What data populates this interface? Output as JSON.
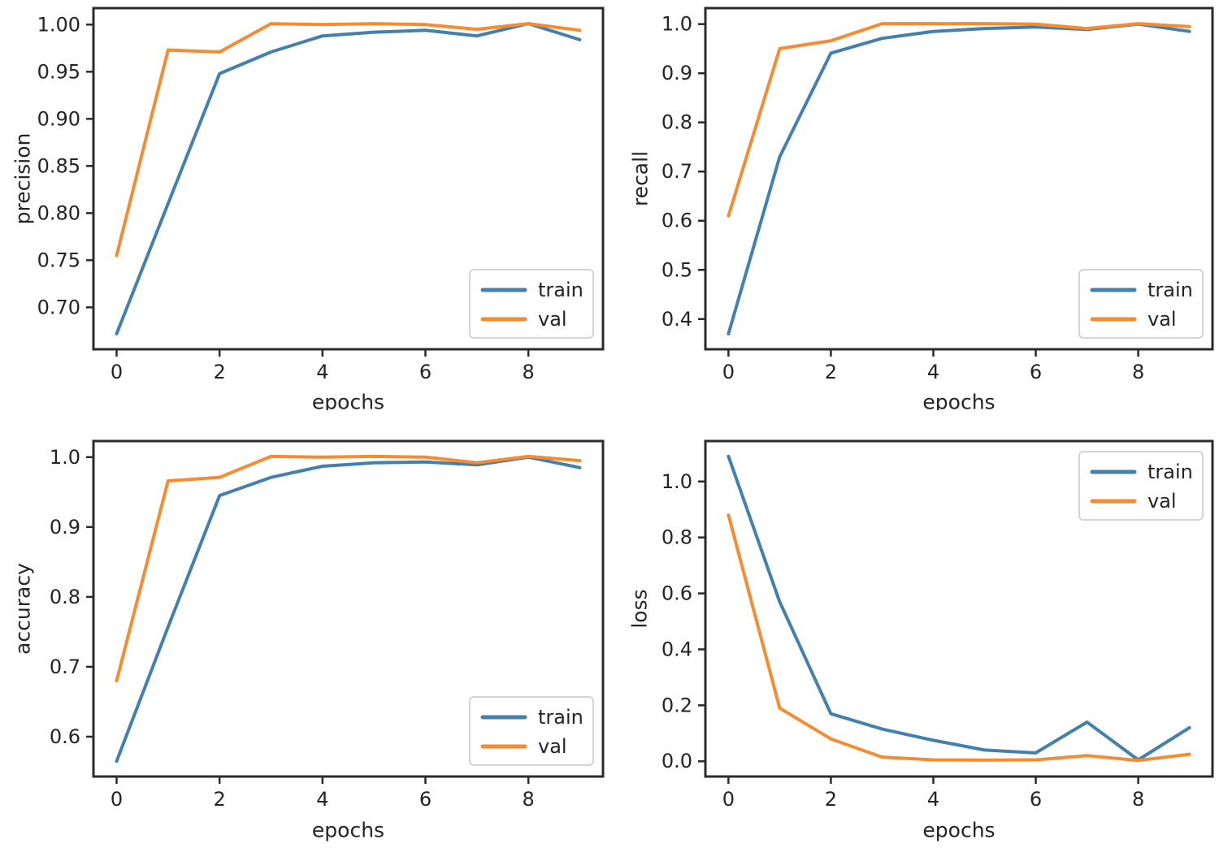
{
  "figure": {
    "background": "#ffffff",
    "colors": {
      "train": "#4380ae",
      "val": "#f68b32",
      "spine": "#2b2b2b",
      "text": "#242424",
      "legend_border": "#d4d4d4",
      "legend_fill": "#ffffff"
    }
  },
  "chart_data": [
    {
      "type": "line",
      "title": "",
      "ylabel": "precision",
      "xlabel": "epochs",
      "x": [
        0,
        1,
        2,
        3,
        4,
        5,
        6,
        7,
        8,
        9
      ],
      "series": [
        {
          "name": "train",
          "color": "#4380ae",
          "values": [
            0.672,
            0.81,
            0.948,
            0.971,
            0.988,
            0.992,
            0.994,
            0.988,
            1.001,
            0.984
          ]
        },
        {
          "name": "val",
          "color": "#f68b32",
          "values": [
            0.755,
            0.973,
            0.971,
            1.001,
            1.0,
            1.001,
            1.0,
            0.995,
            1.001,
            0.994
          ]
        }
      ],
      "xlim": [
        -0.45,
        9.45
      ],
      "ylim": [
        0.6555,
        1.0175
      ],
      "xticks": {
        "values": [
          0,
          2,
          4,
          6,
          8
        ],
        "labels": [
          "0",
          "2",
          "4",
          "6",
          "8"
        ]
      },
      "yticks": {
        "values": [
          0.7,
          0.75,
          0.8,
          0.85,
          0.9,
          0.95,
          1.0
        ],
        "labels": [
          "0.70",
          "0.75",
          "0.80",
          "0.85",
          "0.90",
          "0.95",
          "1.00"
        ]
      },
      "legend": {
        "position": "lower-right"
      },
      "grid": false
    },
    {
      "type": "line",
      "title": "",
      "ylabel": "recall",
      "xlabel": "epochs",
      "x": [
        0,
        1,
        2,
        3,
        4,
        5,
        6,
        7,
        8,
        9
      ],
      "series": [
        {
          "name": "train",
          "color": "#4380ae",
          "values": [
            0.37,
            0.73,
            0.941,
            0.971,
            0.985,
            0.991,
            0.994,
            0.989,
            1.0,
            0.985
          ]
        },
        {
          "name": "val",
          "color": "#f68b32",
          "values": [
            0.61,
            0.95,
            0.966,
            1.001,
            1.001,
            1.001,
            1.0,
            0.991,
            1.001,
            0.995
          ]
        }
      ],
      "xlim": [
        -0.45,
        9.45
      ],
      "ylim": [
        0.3385,
        1.0325
      ],
      "xticks": {
        "values": [
          0,
          2,
          4,
          6,
          8
        ],
        "labels": [
          "0",
          "2",
          "4",
          "6",
          "8"
        ]
      },
      "yticks": {
        "values": [
          0.4,
          0.5,
          0.6,
          0.7,
          0.8,
          0.9,
          1.0
        ],
        "labels": [
          "0.4",
          "0.5",
          "0.6",
          "0.7",
          "0.8",
          "0.9",
          "1.0"
        ]
      },
      "legend": {
        "position": "lower-right"
      },
      "grid": false
    },
    {
      "type": "line",
      "title": "",
      "ylabel": "accuracy",
      "xlabel": "epochs",
      "x": [
        0,
        1,
        2,
        3,
        4,
        5,
        6,
        7,
        8,
        9
      ],
      "series": [
        {
          "name": "train",
          "color": "#4380ae",
          "values": [
            0.565,
            0.757,
            0.945,
            0.971,
            0.987,
            0.992,
            0.993,
            0.989,
            1.0,
            0.985
          ]
        },
        {
          "name": "val",
          "color": "#f68b32",
          "values": [
            0.68,
            0.966,
            0.971,
            1.001,
            1.0,
            1.001,
            1.0,
            0.992,
            1.001,
            0.995
          ]
        }
      ],
      "xlim": [
        -0.45,
        9.45
      ],
      "ylim": [
        0.543,
        1.023
      ],
      "xticks": {
        "values": [
          0,
          2,
          4,
          6,
          8
        ],
        "labels": [
          "0",
          "2",
          "4",
          "6",
          "8"
        ]
      },
      "yticks": {
        "values": [
          0.6,
          0.7,
          0.8,
          0.9,
          1.0
        ],
        "labels": [
          "0.6",
          "0.7",
          "0.8",
          "0.9",
          "1.0"
        ]
      },
      "legend": {
        "position": "lower-right"
      },
      "grid": false
    },
    {
      "type": "line",
      "title": "",
      "ylabel": "loss",
      "xlabel": "epochs",
      "x": [
        0,
        1,
        2,
        3,
        4,
        5,
        6,
        7,
        8,
        9
      ],
      "series": [
        {
          "name": "train",
          "color": "#4380ae",
          "values": [
            1.09,
            0.57,
            0.17,
            0.115,
            0.075,
            0.04,
            0.03,
            0.14,
            0.005,
            0.12
          ]
        },
        {
          "name": "val",
          "color": "#f68b32",
          "values": [
            0.88,
            0.19,
            0.08,
            0.015,
            0.005,
            0.004,
            0.005,
            0.02,
            0.003,
            0.025
          ]
        }
      ],
      "xlim": [
        -0.45,
        9.45
      ],
      "ylim": [
        -0.0545,
        1.1445
      ],
      "xticks": {
        "values": [
          0,
          2,
          4,
          6,
          8
        ],
        "labels": [
          "0",
          "2",
          "4",
          "6",
          "8"
        ]
      },
      "yticks": {
        "values": [
          0.0,
          0.2,
          0.4,
          0.6,
          0.8,
          1.0
        ],
        "labels": [
          "0.0",
          "0.2",
          "0.4",
          "0.6",
          "0.8",
          "1.0"
        ]
      },
      "legend": {
        "position": "upper-right"
      },
      "grid": false
    }
  ]
}
